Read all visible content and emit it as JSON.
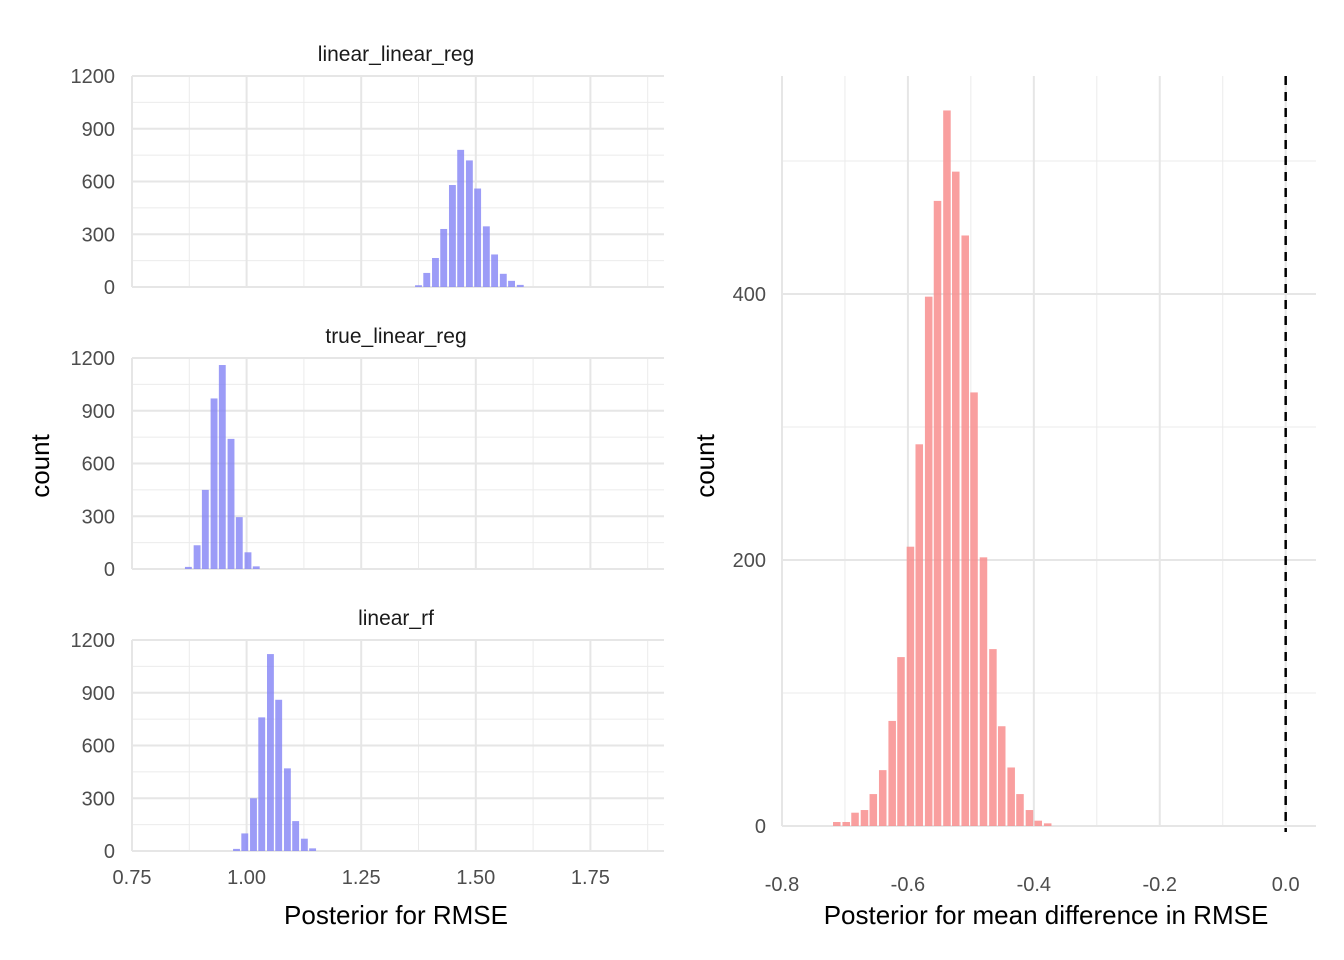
{
  "chart_data": [
    {
      "type": "bar",
      "subtype": "faceted-histogram",
      "xlabel": "Posterior for RMSE",
      "ylabel": "count",
      "xlim": [
        0.75,
        1.9
      ],
      "ylim": [
        0,
        1200
      ],
      "x_ticks": [
        "0.75",
        "1.00",
        "1.25",
        "1.50",
        "1.75"
      ],
      "y_ticks": [
        "0",
        "300",
        "600",
        "900",
        "1200"
      ],
      "grid": true,
      "bar_color": "#8080f5",
      "bin_width": 0.0185,
      "facets": [
        {
          "name": "linear_linear_reg",
          "bins": [
            {
              "x": 1.375,
              "count": 10
            },
            {
              "x": 1.393,
              "count": 80
            },
            {
              "x": 1.412,
              "count": 165
            },
            {
              "x": 1.43,
              "count": 330
            },
            {
              "x": 1.449,
              "count": 580
            },
            {
              "x": 1.467,
              "count": 780
            },
            {
              "x": 1.486,
              "count": 720
            },
            {
              "x": 1.504,
              "count": 560
            },
            {
              "x": 1.523,
              "count": 345
            },
            {
              "x": 1.541,
              "count": 185
            },
            {
              "x": 1.56,
              "count": 75
            },
            {
              "x": 1.578,
              "count": 35
            },
            {
              "x": 1.597,
              "count": 12
            }
          ]
        },
        {
          "name": "true_linear_reg",
          "bins": [
            {
              "x": 0.873,
              "count": 12
            },
            {
              "x": 0.892,
              "count": 135
            },
            {
              "x": 0.91,
              "count": 450
            },
            {
              "x": 0.929,
              "count": 970
            },
            {
              "x": 0.947,
              "count": 1160
            },
            {
              "x": 0.966,
              "count": 740
            },
            {
              "x": 0.984,
              "count": 295
            },
            {
              "x": 1.003,
              "count": 95
            },
            {
              "x": 1.021,
              "count": 15
            }
          ]
        },
        {
          "name": "linear_rf",
          "bins": [
            {
              "x": 0.978,
              "count": 12
            },
            {
              "x": 0.996,
              "count": 100
            },
            {
              "x": 1.015,
              "count": 300
            },
            {
              "x": 1.033,
              "count": 760
            },
            {
              "x": 1.052,
              "count": 1120
            },
            {
              "x": 1.07,
              "count": 860
            },
            {
              "x": 1.089,
              "count": 470
            },
            {
              "x": 1.107,
              "count": 170
            },
            {
              "x": 1.126,
              "count": 70
            },
            {
              "x": 1.144,
              "count": 15
            }
          ]
        }
      ]
    },
    {
      "type": "bar",
      "subtype": "histogram",
      "xlabel": "Posterior for mean difference in RMSE",
      "ylabel": "count",
      "xlim": [
        -0.8,
        0.0
      ],
      "ylim": [
        0,
        536
      ],
      "x_ticks": [
        "-0.8",
        "-0.6",
        "-0.4",
        "-0.2",
        "0.0"
      ],
      "y_ticks": [
        "0",
        "200",
        "400"
      ],
      "grid": true,
      "bar_color": "#f88a8a",
      "bin_width": 0.0145,
      "reference_line": {
        "x": 0.0,
        "style": "dashed",
        "color": "#000000"
      },
      "bins": [
        {
          "x": -0.8,
          "count": 0
        },
        {
          "x": -0.785,
          "count": 0
        },
        {
          "x": -0.771,
          "count": 0
        },
        {
          "x": -0.756,
          "count": 0
        },
        {
          "x": -0.742,
          "count": 0
        },
        {
          "x": -0.727,
          "count": 0
        },
        {
          "x": -0.713,
          "count": 3
        },
        {
          "x": -0.698,
          "count": 3
        },
        {
          "x": -0.684,
          "count": 10
        },
        {
          "x": -0.669,
          "count": 12
        },
        {
          "x": -0.655,
          "count": 24
        },
        {
          "x": -0.64,
          "count": 42
        },
        {
          "x": -0.625,
          "count": 79
        },
        {
          "x": -0.611,
          "count": 127
        },
        {
          "x": -0.596,
          "count": 210
        },
        {
          "x": -0.582,
          "count": 287
        },
        {
          "x": -0.567,
          "count": 398
        },
        {
          "x": -0.553,
          "count": 470
        },
        {
          "x": -0.538,
          "count": 538
        },
        {
          "x": -0.524,
          "count": 492
        },
        {
          "x": -0.509,
          "count": 444
        },
        {
          "x": -0.495,
          "count": 326
        },
        {
          "x": -0.48,
          "count": 202
        },
        {
          "x": -0.465,
          "count": 133
        },
        {
          "x": -0.451,
          "count": 75
        },
        {
          "x": -0.436,
          "count": 44
        },
        {
          "x": -0.422,
          "count": 24
        },
        {
          "x": -0.407,
          "count": 12
        },
        {
          "x": -0.393,
          "count": 4
        },
        {
          "x": -0.378,
          "count": 2
        },
        {
          "x": -0.364,
          "count": 0
        },
        {
          "x": -0.349,
          "count": 0
        },
        {
          "x": -0.335,
          "count": 0
        }
      ]
    }
  ]
}
